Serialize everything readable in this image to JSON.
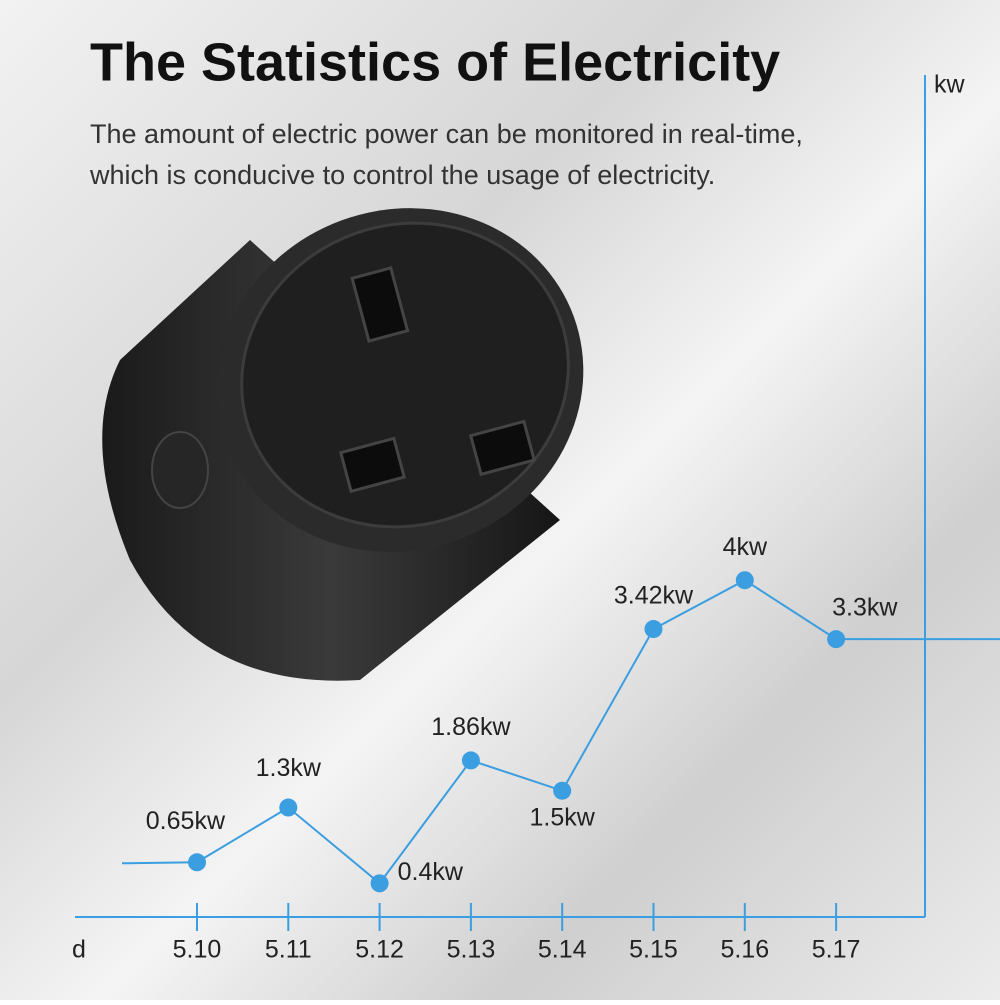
{
  "chart_data": {
    "type": "line",
    "title": "The Statistics of Electricity",
    "subtitle": [
      "The amount of electric power can be monitored in real-time,",
      "which is conducive to control the usage of electricity."
    ],
    "x_label": "d",
    "y_label": "kw",
    "categories": [
      "5.10",
      "5.11",
      "5.12",
      "5.13",
      "5.14",
      "5.15",
      "5.16",
      "5.17"
    ],
    "values": [
      0.65,
      1.3,
      0.4,
      1.86,
      1.5,
      3.42,
      4,
      3.3
    ],
    "value_labels": [
      "0.65kw",
      "1.3kw",
      "0.4kw",
      "1.86kw",
      "1.5kw",
      "3.42kw",
      "4kw",
      "3.3kw"
    ],
    "color": "#3a9ee0",
    "ylim": [
      0,
      10
    ]
  }
}
